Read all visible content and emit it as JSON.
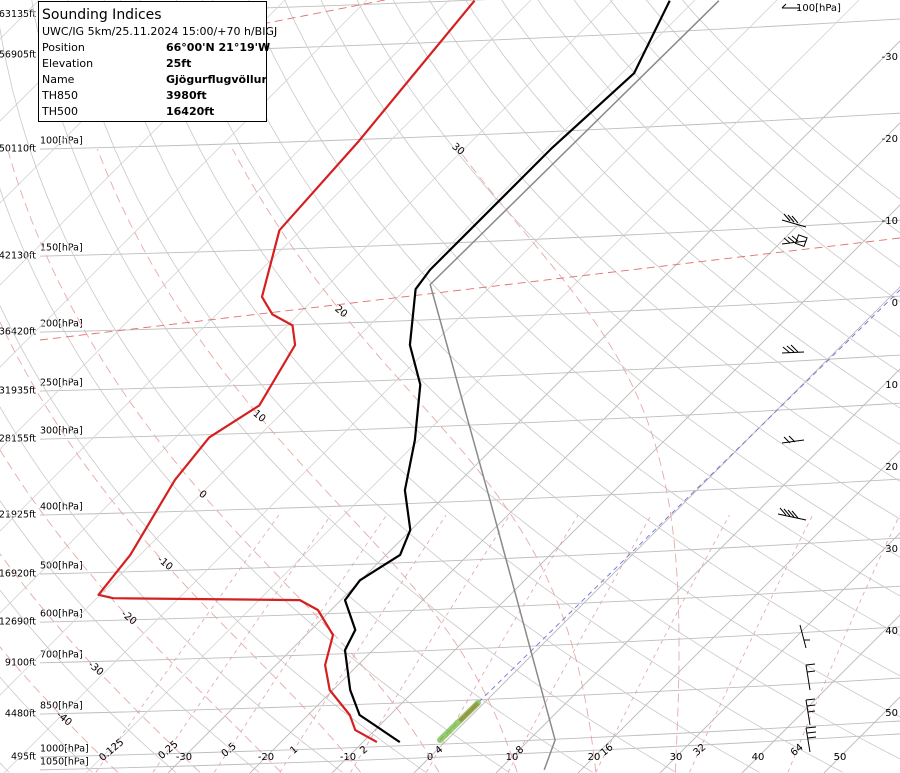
{
  "info": {
    "title": "Sounding Indices",
    "subtitle": "UWC/IG 5km/25.11.2024 15:00/+70 h/BIGJ",
    "rows": [
      [
        "Position",
        "66°00'N 21°19'W"
      ],
      [
        "Elevation",
        "25ft"
      ],
      [
        "Name",
        "Gjögurflugvöllur"
      ],
      [
        "TH850",
        "3980ft"
      ],
      [
        "TH500",
        "16420ft"
      ]
    ]
  },
  "chart_data": {
    "type": "skewt",
    "levels": [
      {
        "value": 60,
        "altitude": "63135ft"
      },
      {
        "value": 70,
        "altitude": "56905ft"
      },
      {
        "value": 100,
        "label": "100[hPa]",
        "altitude": "50110ft"
      },
      {
        "value": 150,
        "label": "150[hPa]",
        "altitude": "42130ft"
      },
      {
        "value": 200,
        "label": "200[hPa]",
        "altitude": "36420ft"
      },
      {
        "value": 250,
        "label": "250[hPa]",
        "altitude": "31935ft"
      },
      {
        "value": 300,
        "label": "300[hPa]",
        "altitude": "28155ft"
      },
      {
        "value": 400,
        "label": "400[hPa]",
        "altitude": "21925ft"
      },
      {
        "value": 500,
        "label": "500[hPa]",
        "altitude": "16920ft"
      },
      {
        "value": 600,
        "label": "600[hPa]",
        "altitude": "12690ft"
      },
      {
        "value": 700,
        "label": "700[hPa]",
        "altitude": "9100ft"
      },
      {
        "value": 850,
        "label": "850[hPa]",
        "altitude": "4480ft"
      },
      {
        "value": 1000,
        "label": "1000[hPa]",
        "altitude": "495ft"
      },
      {
        "value": 1050,
        "label": "1050[hPa]"
      }
    ],
    "temperature_ticks": [
      -30,
      -20,
      -10,
      0,
      10,
      20,
      30,
      40,
      50
    ],
    "moist_adiabat_labels": [
      -40,
      -30,
      -20,
      -10,
      0,
      10,
      20,
      30
    ],
    "mixing_ratio_ticks": [
      0.125,
      0.25,
      0.5,
      1,
      2,
      4,
      8,
      16,
      32,
      64
    ],
    "wind_label": {
      "value": 100,
      "label": "100[hPa]"
    },
    "series": [
      {
        "color": "#000000",
        "pressure": [
          945,
          853,
          776,
          667,
          618,
          552,
          512,
          465,
          423,
          364,
          301,
          244,
          210,
          170,
          158,
          136,
          100,
          75,
          57
        ],
        "values": [
          -5.5,
          -13.7,
          -17.9,
          -23.4,
          -24.6,
          -29.5,
          -30.1,
          -28.3,
          -30.1,
          -35.6,
          -40.5,
          -46.6,
          -52.7,
          -58.8,
          -59.4,
          -59.4,
          -59.4,
          -58.5,
          -63
        ]
      },
      {
        "color": "#d42020",
        "pressure": [
          945,
          903,
          853,
          776,
          706,
          630,
          573,
          552,
          548,
          541,
          465,
          350,
          298,
          264,
          210,
          195,
          187,
          175,
          136,
          97,
          57
        ],
        "values": [
          -8.3,
          -12.4,
          -14.9,
          -20.4,
          -24.0,
          -26.7,
          -31.6,
          -35.0,
          -58.0,
          -60.2,
          -61.2,
          -64.9,
          -65.9,
          -63.7,
          -66.7,
          -69.4,
          -73.2,
          -76.6,
          -82.6,
          -83.8,
          -86.8
        ]
      },
      {
        "color": "#8a8a8a",
        "pressure": [
          1050,
          938,
          378,
          167,
          57
        ],
        "values": [
          15.5,
          13.2,
          -24,
          -57.6,
          -57.0
        ]
      }
    ]
  }
}
